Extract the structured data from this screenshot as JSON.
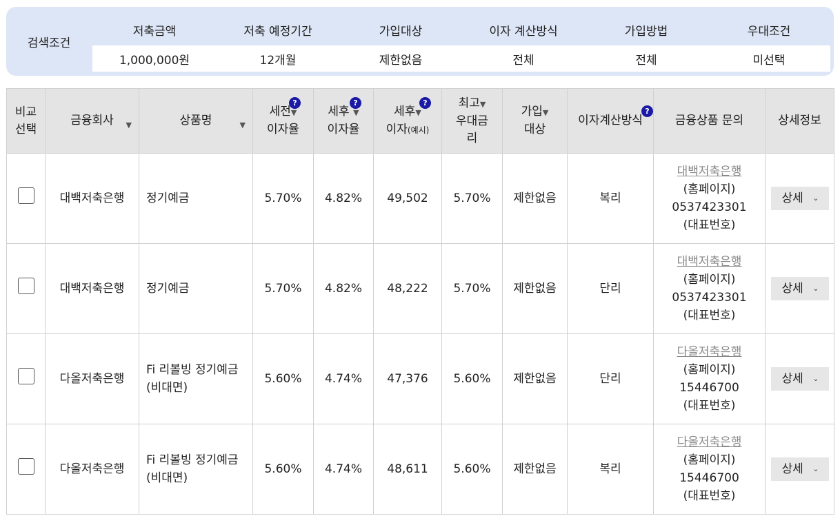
{
  "search": {
    "label": "검색조건",
    "columns": [
      {
        "header": "저축금액",
        "value": "1,000,000원"
      },
      {
        "header": "저축 예정기간",
        "value": "12개월"
      },
      {
        "header": "가입대상",
        "value": "제한없음"
      },
      {
        "header": "이자 계산방식",
        "value": "전체"
      },
      {
        "header": "가입방법",
        "value": "전체"
      },
      {
        "header": "우대조건",
        "value": "미선택"
      }
    ]
  },
  "table": {
    "headers": {
      "compare_l1": "비교",
      "compare_l2": "선택",
      "company": "금융회사",
      "product": "상품명",
      "pre_rate_l1": "세전",
      "pre_rate_l2": "이자율",
      "post_rate_l1": "세후",
      "post_rate_l2": "이자율",
      "post_int_l1": "세후",
      "post_int_l2": "이자",
      "post_int_small": "(예시)",
      "max_rate_l1": "최고",
      "max_rate_l2": "우대금",
      "max_rate_l3": "리",
      "target_l1": "가입",
      "target_l2": "대상",
      "calc": "이자계산방식",
      "inquiry": "금융상품 문의",
      "detail": "상세정보"
    },
    "help_glyph": "?",
    "sort_glyph": "▼",
    "rows": [
      {
        "company": "대백저축은행",
        "product": "정기예금",
        "pre_rate": "5.70%",
        "post_rate": "4.82%",
        "post_interest": "49,502",
        "max_rate": "5.70%",
        "target": "제한없음",
        "calc": "복리",
        "bank_link": "대백저축은행",
        "homepage": "(홈페이지)",
        "phone": "0537423301",
        "phone_note": "(대표번호)",
        "detail_label": "상세"
      },
      {
        "company": "대백저축은행",
        "product": "정기예금",
        "pre_rate": "5.70%",
        "post_rate": "4.82%",
        "post_interest": "48,222",
        "max_rate": "5.70%",
        "target": "제한없음",
        "calc": "단리",
        "bank_link": "대백저축은행",
        "homepage": "(홈페이지)",
        "phone": "0537423301",
        "phone_note": "(대표번호)",
        "detail_label": "상세"
      },
      {
        "company": "다올저축은행",
        "product": "Fi 리볼빙 정기예금 (비대면)",
        "pre_rate": "5.60%",
        "post_rate": "4.74%",
        "post_interest": "47,376",
        "max_rate": "5.60%",
        "target": "제한없음",
        "calc": "단리",
        "bank_link": "다올저축은행",
        "homepage": "(홈페이지)",
        "phone": "15446700",
        "phone_note": "(대표번호)",
        "detail_label": "상세"
      },
      {
        "company": "다올저축은행",
        "product": "Fi 리볼빙 정기예금 (비대면)",
        "pre_rate": "5.60%",
        "post_rate": "4.74%",
        "post_interest": "48,611",
        "max_rate": "5.60%",
        "target": "제한없음",
        "calc": "복리",
        "bank_link": "다올저축은행",
        "homepage": "(홈페이지)",
        "phone": "15446700",
        "phone_note": "(대표번호)",
        "detail_label": "상세"
      }
    ]
  },
  "colors": {
    "panel": "#dde6f6",
    "header_bg": "#e4e4e4",
    "help_icon": "#1a1aa6"
  }
}
